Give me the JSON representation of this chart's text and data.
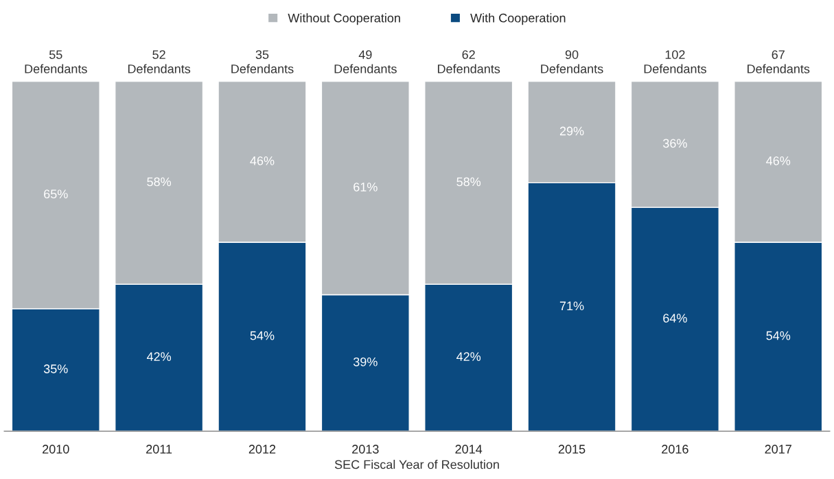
{
  "chart_data": {
    "type": "bar",
    "stacked": true,
    "xlabel": "SEC Fiscal Year of Resolution",
    "categories": [
      "2010",
      "2011",
      "2012",
      "2013",
      "2014",
      "2015",
      "2016",
      "2017"
    ],
    "series": [
      {
        "name": "With Cooperation",
        "color": "#0b4a80",
        "values": [
          35,
          42,
          54,
          39,
          42,
          71,
          64,
          54
        ],
        "value_labels": [
          "35%",
          "42%",
          "54%",
          "39%",
          "42%",
          "71%",
          "64%",
          "54%"
        ]
      },
      {
        "name": "Without Cooperation",
        "color": "#b3b8bc",
        "values": [
          65,
          58,
          46,
          61,
          58,
          29,
          36,
          46
        ],
        "value_labels": [
          "65%",
          "58%",
          "46%",
          "61%",
          "58%",
          "29%",
          "36%",
          "46%"
        ]
      }
    ],
    "annotations": [
      {
        "text": "55\nDefendants",
        "x": "2010",
        "y": 100
      },
      {
        "text": "52\nDefendants",
        "x": "2011",
        "y": 100
      },
      {
        "text": "35\nDefendants",
        "x": "2012",
        "y": 100
      },
      {
        "text": "49\nDefendants",
        "x": "2013",
        "y": 100
      },
      {
        "text": "62\nDefendants",
        "x": "2014",
        "y": 100
      },
      {
        "text": "90\nDefendants",
        "x": "2015",
        "y": 100
      },
      {
        "text": "102\nDefendants",
        "x": "2016",
        "y": 100
      },
      {
        "text": "67\nDefendants",
        "x": "2017",
        "y": 100
      }
    ],
    "ylim": [
      0,
      100
    ],
    "tick_labels": "x",
    "grid": false,
    "legend": "top"
  }
}
